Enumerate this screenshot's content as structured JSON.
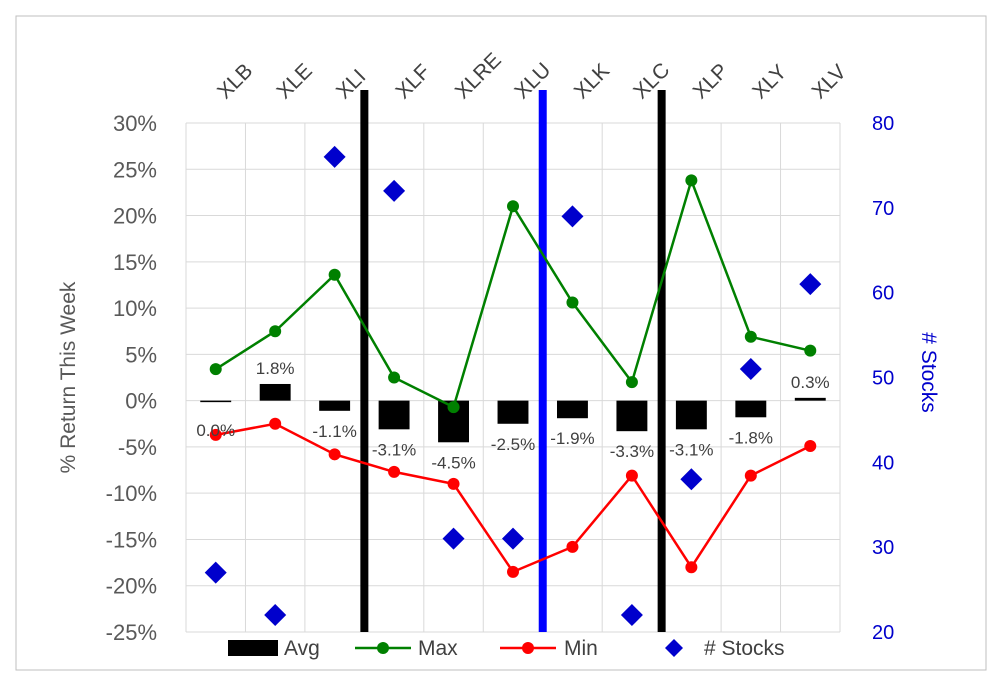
{
  "chart_data": {
    "type": "bar",
    "categories": [
      "XLB",
      "XLE",
      "XLI",
      "XLF",
      "XLRE",
      "XLU",
      "XLK",
      "XLC",
      "XLP",
      "XLY",
      "XLV"
    ],
    "series": [
      {
        "name": "Avg",
        "type": "bar",
        "axis": "left",
        "color": "#000000",
        "values": [
          0.0,
          1.8,
          -1.1,
          -3.1,
          -4.5,
          -2.5,
          -1.9,
          -3.3,
          -3.1,
          -1.8,
          0.3
        ],
        "labels": [
          "0.0%",
          "1.8%",
          "-1.1%",
          "-3.1%",
          "-4.5%",
          "-2.5%",
          "-1.9%",
          "-3.3%",
          "-3.1%",
          "-1.8%",
          "0.3%"
        ]
      },
      {
        "name": "Max",
        "type": "line",
        "axis": "left",
        "color": "#008000",
        "values": [
          3.4,
          7.5,
          13.6,
          2.5,
          -0.7,
          21.0,
          10.6,
          2.0,
          23.8,
          6.9,
          5.4
        ]
      },
      {
        "name": "Min",
        "type": "line",
        "axis": "left",
        "color": "#ff0000",
        "values": [
          -3.7,
          -2.5,
          -5.8,
          -7.7,
          -9.0,
          -18.5,
          -15.8,
          -8.1,
          -18.0,
          -8.1,
          -4.9
        ]
      },
      {
        "name": "# Stocks",
        "type": "scatter",
        "axis": "right",
        "color": "#0000cc",
        "values": [
          27,
          22,
          76,
          72,
          31,
          31,
          69,
          22,
          38,
          51,
          61
        ]
      }
    ],
    "y_left": {
      "label": "% Return This Week",
      "min": -25,
      "max": 30,
      "step": 5,
      "ticks": [
        "-25%",
        "-20%",
        "-15%",
        "-10%",
        "-5%",
        "0%",
        "5%",
        "10%",
        "15%",
        "20%",
        "25%",
        "30%"
      ]
    },
    "y_right": {
      "label": "# Stocks",
      "min": 20,
      "max": 80,
      "step": 10,
      "ticks": [
        "20",
        "30",
        "40",
        "50",
        "60",
        "70",
        "80"
      ]
    },
    "separators": [
      {
        "after_category": "XLI",
        "color": "#000000"
      },
      {
        "after_category": "XLU",
        "color": "#0000ff"
      },
      {
        "after_category": "XLC",
        "color": "#000000"
      }
    ],
    "grid": true,
    "legend_position": "bottom"
  }
}
